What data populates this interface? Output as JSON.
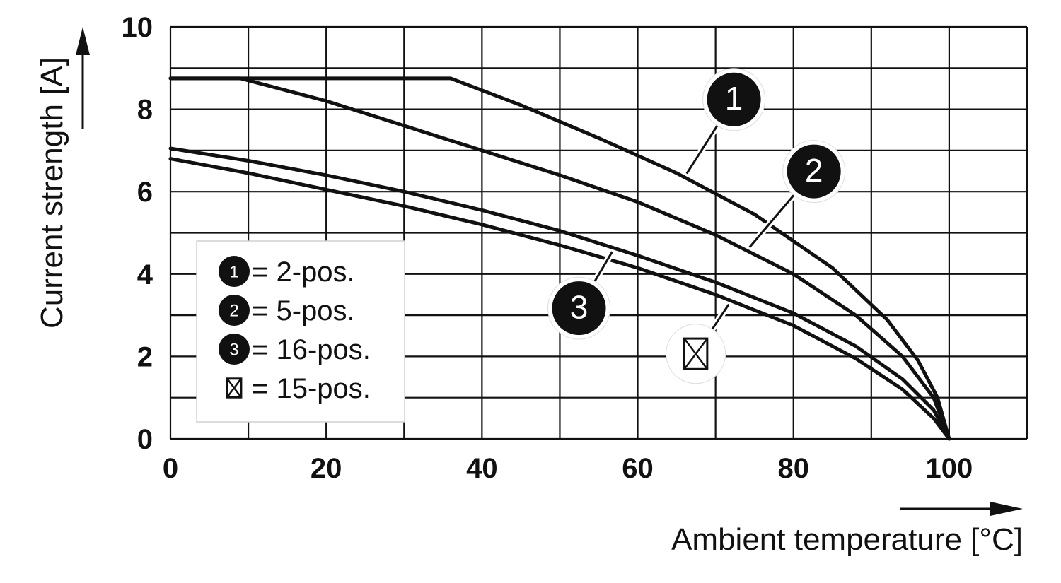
{
  "chart_data": {
    "type": "line",
    "xlabel": "Ambient temperature [°C]",
    "ylabel": "Current strength [A]",
    "xlim": [
      0,
      110
    ],
    "ylim": [
      0,
      10
    ],
    "x_ticks": [
      0,
      20,
      40,
      60,
      80,
      100
    ],
    "y_ticks": [
      0,
      2,
      4,
      6,
      8,
      10
    ],
    "grid": true,
    "series": [
      {
        "marker": "1",
        "name": "2-pos.",
        "x": [
          0,
          36,
          45,
          55,
          65,
          75,
          85,
          92,
          96,
          98.5,
          100
        ],
        "y": [
          8.75,
          8.75,
          8.1,
          7.3,
          6.45,
          5.45,
          4.15,
          2.9,
          1.9,
          1.0,
          0
        ]
      },
      {
        "marker": "2",
        "name": "5-pos.",
        "x": [
          0,
          9,
          20,
          30,
          40,
          50,
          60,
          70,
          80,
          88,
          94,
          98,
          100
        ],
        "y": [
          8.75,
          8.75,
          8.2,
          7.6,
          7.0,
          6.4,
          5.75,
          4.95,
          4.0,
          3.0,
          2.0,
          1.0,
          0
        ]
      },
      {
        "marker": "3",
        "name": "16-pos.",
        "x": [
          0,
          10,
          20,
          30,
          40,
          50,
          60,
          70,
          80,
          88,
          94,
          98,
          100
        ],
        "y": [
          7.05,
          6.75,
          6.4,
          6.0,
          5.55,
          5.05,
          4.45,
          3.8,
          3.05,
          2.25,
          1.45,
          0.7,
          0
        ]
      },
      {
        "marker": "⊠",
        "name": "15-pos.",
        "x": [
          0,
          10,
          20,
          30,
          40,
          50,
          60,
          70,
          80,
          88,
          94,
          98,
          100
        ],
        "y": [
          6.8,
          6.45,
          6.05,
          5.65,
          5.2,
          4.7,
          4.15,
          3.5,
          2.75,
          1.95,
          1.2,
          0.5,
          0
        ]
      }
    ],
    "legend": [
      {
        "marker": "1",
        "text": "= 2-pos."
      },
      {
        "marker": "2",
        "text": "= 5-pos."
      },
      {
        "marker": "3",
        "text": "= 16-pos."
      },
      {
        "marker": "⊠",
        "text": "= 15-pos."
      }
    ],
    "legend_position": "lower-left",
    "callouts": [
      {
        "marker": "1",
        "series": 0,
        "at_x": 66
      },
      {
        "marker": "2",
        "series": 1,
        "at_x": 74
      },
      {
        "marker": "3",
        "series": 2,
        "at_x": 57
      },
      {
        "marker": "⊠",
        "series": 3,
        "at_x": 72
      }
    ],
    "colors": {
      "line": "#111111",
      "grid": "#111111",
      "badge": "#111111",
      "background": "#ffffff"
    }
  }
}
